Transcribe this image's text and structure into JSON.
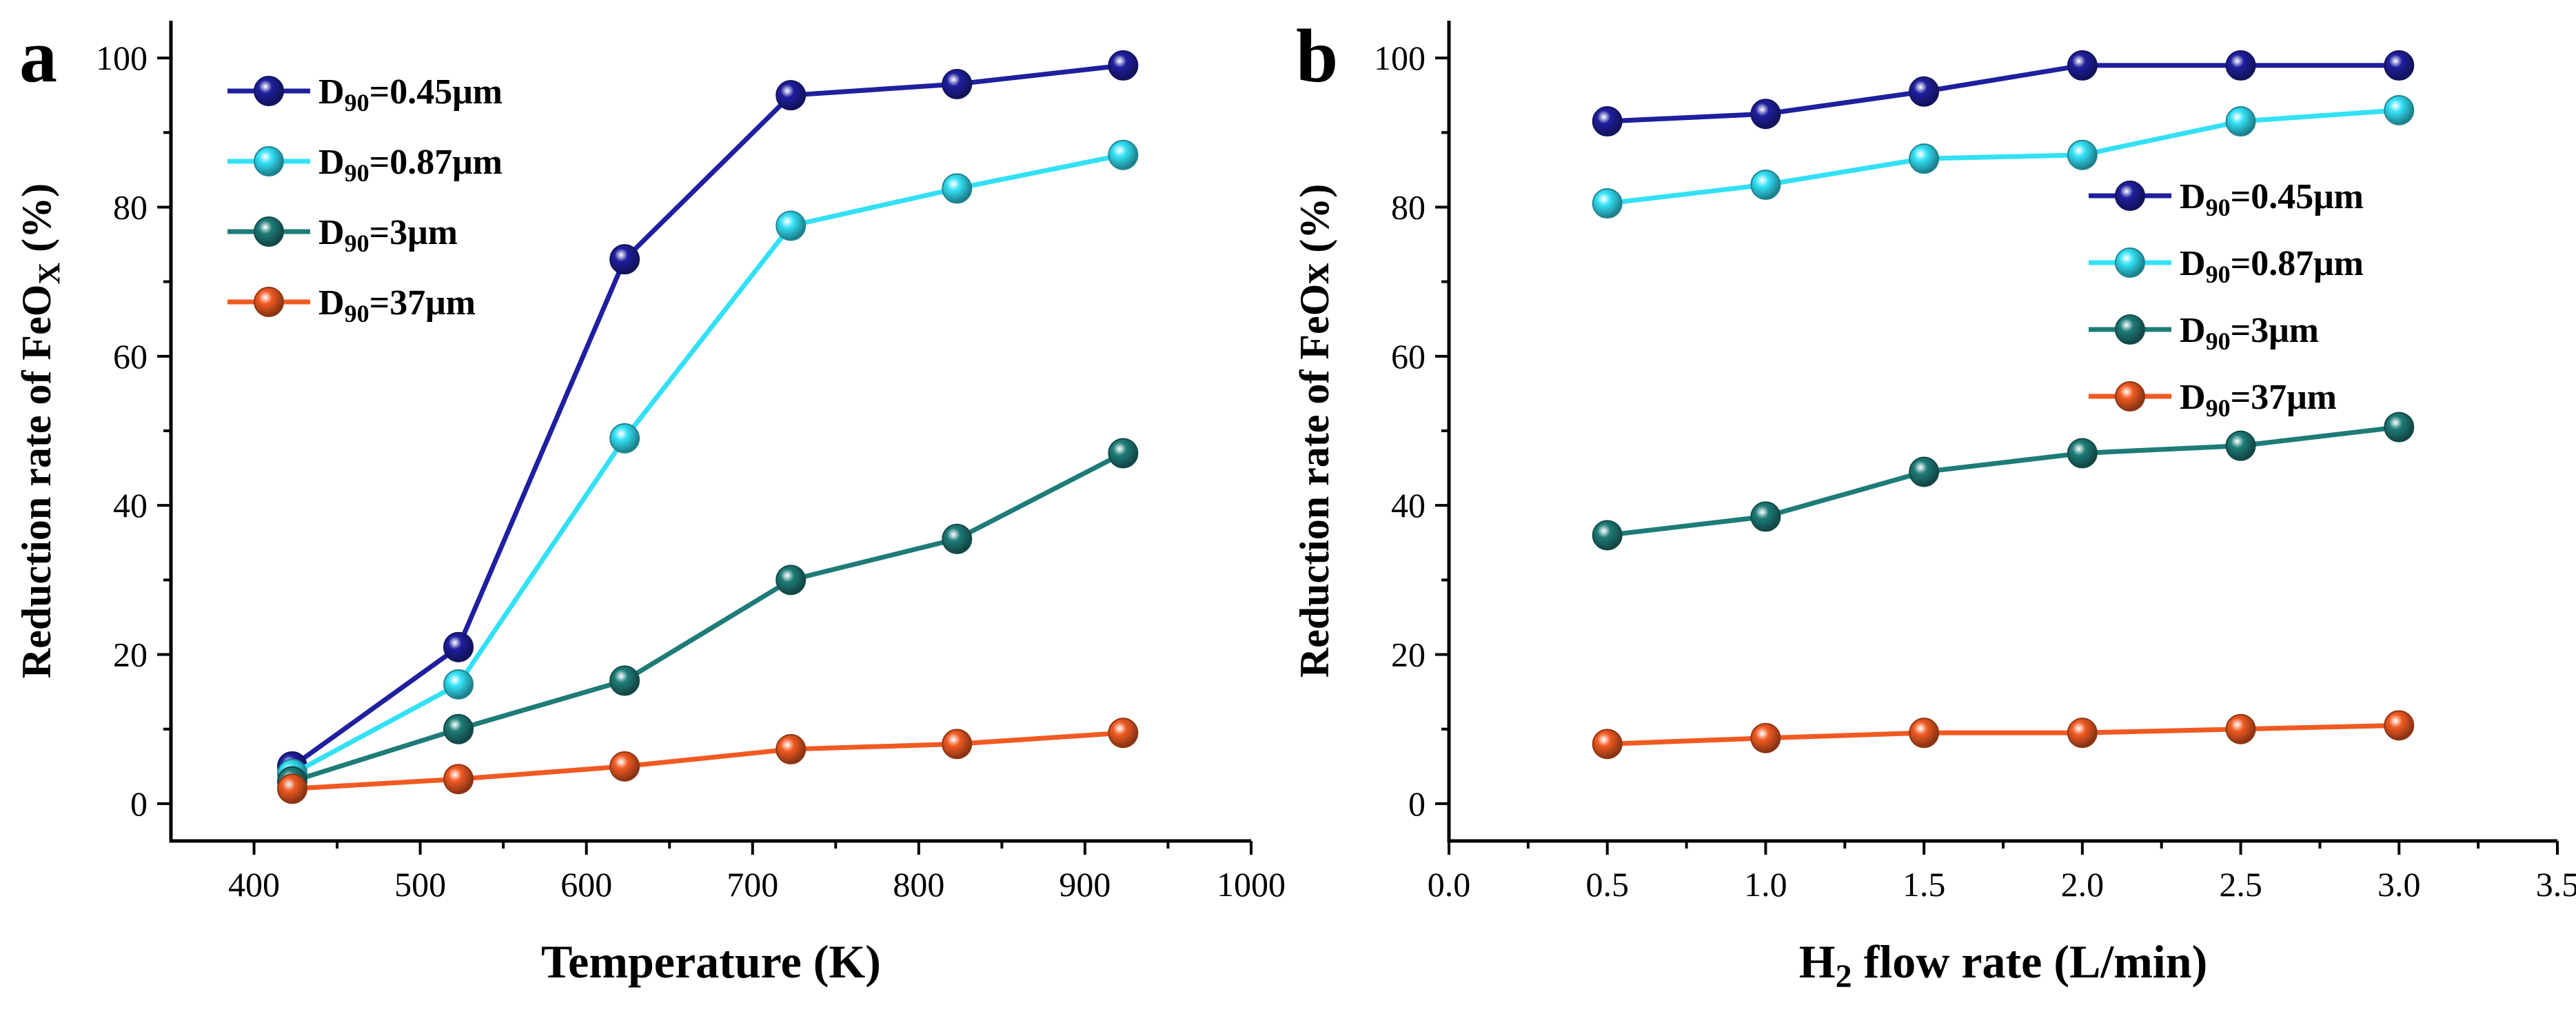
{
  "chart_data": [
    {
      "type": "line",
      "panel_label": "a",
      "xlabel": "Temperature (K)",
      "ylabel": {
        "main": "Reduction rate of FeO",
        "sub": "X",
        "tail": " (%)"
      },
      "xlim": [
        350,
        1000
      ],
      "ylim": [
        -5,
        105
      ],
      "xticks": [
        "400",
        "500",
        "600",
        "700",
        "800",
        "900",
        "1000"
      ],
      "yticks": [
        "0",
        "20",
        "40",
        "60",
        "80",
        "100"
      ],
      "legend_position": "top-left",
      "x": [
        423,
        523,
        623,
        723,
        823,
        923
      ],
      "series": [
        {
          "name": "D90=0.45μm",
          "label_prefix": "D",
          "label_sub": "90",
          "label_rest": "=0.45μm",
          "color": "#1f1f9f",
          "values": [
            5,
            21,
            73,
            95,
            96.5,
            99
          ]
        },
        {
          "name": "D90=0.87μm",
          "label_prefix": "D",
          "label_sub": "90",
          "label_rest": "=0.87μm",
          "color": "#33e0f5",
          "values": [
            4,
            16,
            49,
            77.5,
            82.5,
            87
          ]
        },
        {
          "name": "D90=3μm",
          "label_prefix": "D",
          "label_sub": "90",
          "label_rest": "=3μm",
          "color": "#1e7c78",
          "values": [
            3,
            10,
            16.5,
            30,
            35.5,
            47
          ]
        },
        {
          "name": "D90=37μm",
          "label_prefix": "D",
          "label_sub": "90",
          "label_rest": "=37μm",
          "color": "#f05a22",
          "values": [
            2,
            3.3,
            5,
            7.3,
            8,
            9.5
          ]
        }
      ]
    },
    {
      "type": "line",
      "panel_label": "b",
      "xlabel": {
        "main": "H",
        "sub": "2",
        "tail": " flow rate (L/min)"
      },
      "ylabel": {
        "main": "Reduction rate of  FeOx (%)"
      },
      "xlim": [
        0.0,
        3.5
      ],
      "ylim": [
        -5,
        105
      ],
      "xticks": [
        "0.0",
        "0.5",
        "1.0",
        "1.5",
        "2.0",
        "2.5",
        "3.0",
        "3.5"
      ],
      "yticks": [
        "0",
        "20",
        "40",
        "60",
        "80",
        "100"
      ],
      "legend_position": "right",
      "x": [
        0.5,
        1.0,
        1.5,
        2.0,
        2.5,
        3.0
      ],
      "series": [
        {
          "name": "D90=0.45μm",
          "label_prefix": "D",
          "label_sub": "90",
          "label_rest": "=0.45μm",
          "color": "#1f1f9f",
          "values": [
            91.5,
            92.5,
            95.5,
            99,
            99,
            99
          ]
        },
        {
          "name": "D90=0.87μm",
          "label_prefix": "D",
          "label_sub": "90",
          "label_rest": "=0.87μm",
          "color": "#33e0f5",
          "values": [
            80.5,
            83,
            86.5,
            87,
            91.5,
            93
          ]
        },
        {
          "name": "D90=3μm",
          "label_prefix": "D",
          "label_sub": "90",
          "label_rest": "=3μm",
          "color": "#1e7c78",
          "values": [
            36,
            38.5,
            44.5,
            47,
            48,
            50.5
          ]
        },
        {
          "name": "D90=37μm",
          "label_prefix": "D",
          "label_sub": "90",
          "label_rest": "=37μm",
          "color": "#f05a22",
          "values": [
            8,
            8.8,
            9.5,
            9.5,
            10,
            10.5
          ]
        }
      ]
    }
  ]
}
